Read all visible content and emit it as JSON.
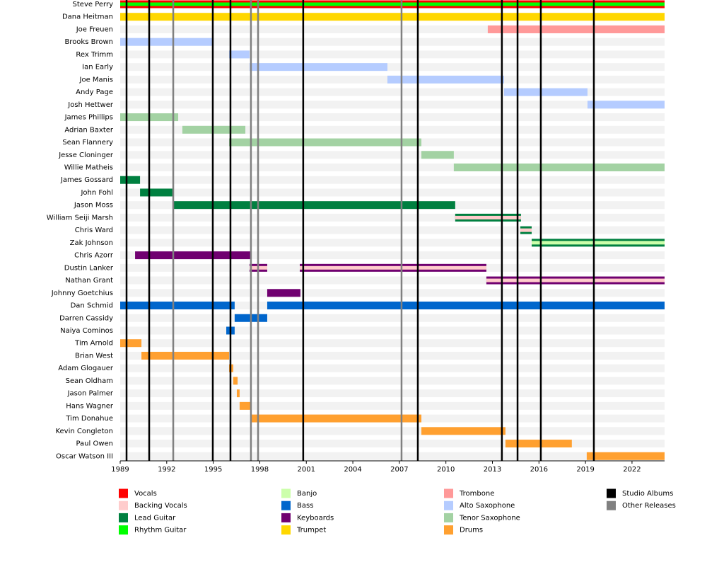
{
  "chart_data": {
    "type": "timeline",
    "xlim": [
      1989,
      2024.1
    ],
    "xticks": [
      1989,
      1992,
      1995,
      1998,
      2001,
      2004,
      2007,
      2010,
      2013,
      2016,
      2019,
      2022
    ],
    "legend": [
      {
        "name": "Vocals",
        "color": "#ff0000"
      },
      {
        "name": "Backing Vocals",
        "color": "#ffcccc"
      },
      {
        "name": "Lead Guitar",
        "color": "#008040"
      },
      {
        "name": "Rhythm Guitar",
        "color": "#00ff00"
      },
      {
        "name": "Banjo",
        "color": "#ccffaa"
      },
      {
        "name": "Bass",
        "color": "#0066cc"
      },
      {
        "name": "Keyboards",
        "color": "#700070"
      },
      {
        "name": "Trumpet",
        "color": "#ffd700"
      },
      {
        "name": "Trombone",
        "color": "#ff9999"
      },
      {
        "name": "Alto Saxophone",
        "color": "#b5ccff"
      },
      {
        "name": "Tenor Saxophone",
        "color": "#a3d2a3"
      },
      {
        "name": "Drums",
        "color": "#ffa030"
      },
      {
        "name": "Studio Albums",
        "color": "#000000"
      },
      {
        "name": "Other Releases",
        "color": "#808080"
      }
    ],
    "studio_albums": [
      1989.41,
      1990.87,
      1994.97,
      1996.11,
      2000.8,
      2008.19,
      2013.61,
      2014.62,
      2016.12,
      2019.54
    ],
    "other_releases": [
      1992.42,
      1997.43,
      1997.89,
      2007.14
    ],
    "members": [
      {
        "name": "Steve Perry",
        "periods": [
          {
            "start": 1989,
            "end": 2024.1,
            "role": "Vocals",
            "role2": "Rhythm Guitar"
          }
        ]
      },
      {
        "name": "Dana Heitman",
        "periods": [
          {
            "start": 1989,
            "end": 2024.1,
            "role": "Trumpet"
          }
        ]
      },
      {
        "name": "Joe Freuen",
        "periods": [
          {
            "start": 2012.7,
            "end": 2024.1,
            "role": "Trombone"
          }
        ]
      },
      {
        "name": "Brooks Brown",
        "periods": [
          {
            "start": 1989,
            "end": 1995.02,
            "role": "Alto Saxophone"
          }
        ]
      },
      {
        "name": "Rex Trimm",
        "periods": [
          {
            "start": 1996.02,
            "end": 1997.34,
            "role": "Alto Saxophone"
          }
        ]
      },
      {
        "name": "Ian Early",
        "periods": [
          {
            "start": 1997.34,
            "end": 2006.23,
            "role": "Alto Saxophone"
          }
        ]
      },
      {
        "name": "Joe Manis",
        "periods": [
          {
            "start": 2006.23,
            "end": 2013.75,
            "role": "Alto Saxophone"
          }
        ]
      },
      {
        "name": "Andy Page",
        "periods": [
          {
            "start": 2013.75,
            "end": 2019.13,
            "role": "Alto Saxophone"
          }
        ]
      },
      {
        "name": "Josh Hettwer",
        "periods": [
          {
            "start": 2019.13,
            "end": 2024.1,
            "role": "Alto Saxophone"
          }
        ]
      },
      {
        "name": "James Phillips",
        "periods": [
          {
            "start": 1989,
            "end": 1992.74,
            "role": "Tenor Saxophone"
          }
        ]
      },
      {
        "name": "Adrian Baxter",
        "periods": [
          {
            "start": 1993.01,
            "end": 1997.07,
            "role": "Tenor Saxophone"
          }
        ]
      },
      {
        "name": "Sean Flannery",
        "periods": [
          {
            "start": 1996.02,
            "end": 2008.42,
            "role": "Tenor Saxophone"
          }
        ]
      },
      {
        "name": "Jesse Cloninger",
        "periods": [
          {
            "start": 2008.42,
            "end": 2010.51,
            "role": "Tenor Saxophone"
          }
        ]
      },
      {
        "name": "Willie Matheis",
        "periods": [
          {
            "start": 2010.51,
            "end": 2024.1,
            "role": "Tenor Saxophone"
          }
        ]
      },
      {
        "name": "James Gossard",
        "periods": [
          {
            "start": 1989,
            "end": 1990.28,
            "role": "Lead Guitar"
          }
        ]
      },
      {
        "name": "John Fohl",
        "periods": [
          {
            "start": 1990.28,
            "end": 1992.46,
            "role": "Lead Guitar"
          }
        ]
      },
      {
        "name": "Jason Moss",
        "periods": [
          {
            "start": 1992.46,
            "end": 2010.6,
            "role": "Lead Guitar"
          }
        ]
      },
      {
        "name": "William Seiji Marsh",
        "periods": [
          {
            "start": 2010.6,
            "end": 2014.84,
            "role": "Lead Guitar",
            "role2": "Backing Vocals"
          }
        ]
      },
      {
        "name": "Chris Ward",
        "periods": [
          {
            "start": 2014.8,
            "end": 2015.53,
            "role": "Lead Guitar",
            "role2": "Backing Vocals"
          }
        ]
      },
      {
        "name": "Zak Johnson",
        "periods": [
          {
            "start": 2015.53,
            "end": 2024.1,
            "role": "Lead Guitar",
            "role2": "Banjo"
          }
        ]
      },
      {
        "name": "Chris Azorr",
        "periods": [
          {
            "start": 1989.96,
            "end": 1997.39,
            "role": "Keyboards"
          }
        ]
      },
      {
        "name": "Dustin Lanker",
        "periods": [
          {
            "start": 1997.34,
            "end": 1998.48,
            "role": "Keyboards",
            "role2": "Backing Vocals"
          },
          {
            "start": 2000.58,
            "end": 2012.61,
            "role": "Keyboards",
            "role2": "Backing Vocals"
          }
        ]
      },
      {
        "name": "Nathan Grant",
        "periods": [
          {
            "start": 2012.61,
            "end": 2024.1,
            "role": "Keyboards",
            "role2": "Backing Vocals"
          }
        ]
      },
      {
        "name": "Johnny Goetchius",
        "periods": [
          {
            "start": 1998.48,
            "end": 2000.62,
            "role": "Keyboards"
          }
        ]
      },
      {
        "name": "Dan Schmid",
        "periods": [
          {
            "start": 1989,
            "end": 1996.38,
            "role": "Bass"
          },
          {
            "start": 1998.48,
            "end": 2024.1,
            "role": "Bass"
          }
        ]
      },
      {
        "name": "Darren Cassidy",
        "periods": [
          {
            "start": 1996.38,
            "end": 1998.48,
            "role": "Bass"
          }
        ]
      },
      {
        "name": "Naiya Cominos",
        "periods": [
          {
            "start": 1995.84,
            "end": 1996.38,
            "role": "Bass"
          }
        ]
      },
      {
        "name": "Tim Arnold",
        "periods": [
          {
            "start": 1989,
            "end": 1990.37,
            "role": "Drums"
          }
        ]
      },
      {
        "name": "Brian West",
        "periods": [
          {
            "start": 1990.37,
            "end": 1996.02,
            "role": "Drums"
          }
        ]
      },
      {
        "name": "Adam Glogauer",
        "periods": [
          {
            "start": 1996.02,
            "end": 1996.29,
            "role": "Drums"
          }
        ]
      },
      {
        "name": "Sean Oldham",
        "periods": [
          {
            "start": 1996.29,
            "end": 1996.57,
            "role": "Drums"
          }
        ]
      },
      {
        "name": "Jason Palmer",
        "periods": [
          {
            "start": 1996.52,
            "end": 1996.7,
            "role": "Drums"
          }
        ]
      },
      {
        "name": "Hans Wagner",
        "periods": [
          {
            "start": 1996.7,
            "end": 1997.43,
            "role": "Drums"
          }
        ]
      },
      {
        "name": "Tim Donahue",
        "periods": [
          {
            "start": 1997.43,
            "end": 2008.42,
            "role": "Drums"
          }
        ]
      },
      {
        "name": "Kevin Congleton",
        "periods": [
          {
            "start": 2008.42,
            "end": 2013.84,
            "role": "Drums"
          }
        ]
      },
      {
        "name": "Paul Owen",
        "periods": [
          {
            "start": 2013.84,
            "end": 2018.12,
            "role": "Drums"
          }
        ]
      },
      {
        "name": "Oscar Watson III",
        "periods": [
          {
            "start": 2019.08,
            "end": 2024.1,
            "role": "Drums"
          }
        ]
      }
    ]
  }
}
